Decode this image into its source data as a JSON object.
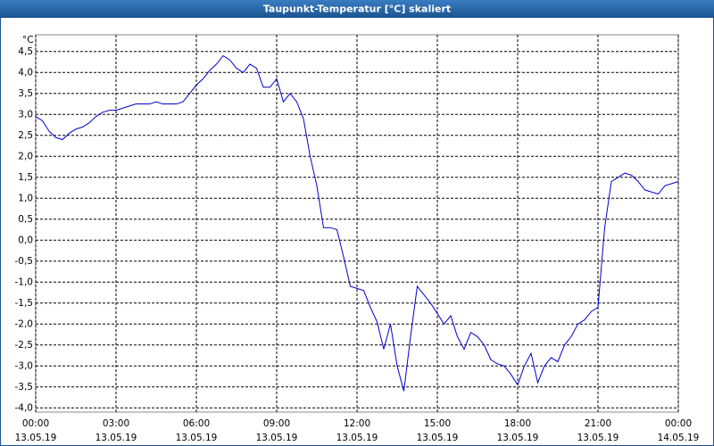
{
  "chart_data": {
    "type": "line",
    "title": "Taupunkt-Temperatur [°C] skaliert",
    "yunit": "°C",
    "x": [
      0,
      0.25,
      0.5,
      0.75,
      1,
      1.25,
      1.5,
      1.75,
      2,
      2.25,
      2.5,
      2.75,
      3,
      3.25,
      3.5,
      3.75,
      4,
      4.25,
      4.5,
      4.75,
      5,
      5.25,
      5.5,
      5.75,
      6,
      6.25,
      6.5,
      6.75,
      7,
      7.25,
      7.5,
      7.75,
      8,
      8.25,
      8.5,
      8.75,
      9,
      9.25,
      9.5,
      9.75,
      10,
      10.25,
      10.5,
      10.75,
      11,
      11.25,
      11.5,
      11.75,
      12,
      12.25,
      12.5,
      12.75,
      13,
      13.25,
      13.5,
      13.75,
      14,
      14.25,
      14.5,
      14.75,
      15,
      15.25,
      15.5,
      15.75,
      16,
      16.25,
      16.5,
      16.75,
      17,
      17.25,
      17.5,
      17.75,
      18,
      18.25,
      18.5,
      18.75,
      19,
      19.25,
      19.5,
      19.75,
      20,
      20.25,
      20.5,
      20.75,
      21,
      21.25,
      21.5,
      21.75,
      22,
      22.25,
      22.5,
      22.75,
      23,
      23.25,
      23.5,
      23.75,
      24
    ],
    "values": [
      2.95,
      2.85,
      2.6,
      2.45,
      2.4,
      2.55,
      2.65,
      2.7,
      2.8,
      2.95,
      3.05,
      3.1,
      3.1,
      3.15,
      3.2,
      3.25,
      3.25,
      3.25,
      3.3,
      3.25,
      3.25,
      3.25,
      3.3,
      3.5,
      3.7,
      3.85,
      4.05,
      4.2,
      4.4,
      4.3,
      4.1,
      4.0,
      4.2,
      4.1,
      3.65,
      3.65,
      3.85,
      3.3,
      3.5,
      3.3,
      2.9,
      2.0,
      1.3,
      0.3,
      0.3,
      0.25,
      -0.4,
      -1.1,
      -1.15,
      -1.2,
      -1.6,
      -1.95,
      -2.6,
      -2.0,
      -3.0,
      -3.6,
      -2.3,
      -1.1,
      -1.3,
      -1.5,
      -1.75,
      -2.0,
      -1.8,
      -2.3,
      -2.6,
      -2.2,
      -2.3,
      -2.5,
      -2.85,
      -2.95,
      -3.0,
      -3.2,
      -3.45,
      -3.0,
      -2.7,
      -3.4,
      -3.0,
      -2.8,
      -2.9,
      -2.5,
      -2.3,
      -2.0,
      -1.9,
      -1.7,
      -1.6,
      0.3,
      1.4,
      1.5,
      1.6,
      1.55,
      1.4,
      1.2,
      1.15,
      1.1,
      1.3,
      1.35,
      1.4
    ],
    "color": "#0000cc",
    "grid": true,
    "xlim": [
      0,
      24
    ],
    "xticks": [
      {
        "value": 0,
        "label": "00:00",
        "date": "13.05.19"
      },
      {
        "value": 3,
        "label": "03:00",
        "date": "13.05.19"
      },
      {
        "value": 6,
        "label": "06:00",
        "date": "13.05.19"
      },
      {
        "value": 9,
        "label": "09:00",
        "date": "13.05.19"
      },
      {
        "value": 12,
        "label": "12:00",
        "date": "13.05.19"
      },
      {
        "value": 15,
        "label": "15:00",
        "date": "13.05.19"
      },
      {
        "value": 18,
        "label": "18:00",
        "date": "13.05.19"
      },
      {
        "value": 21,
        "label": "21:00",
        "date": "13.05.19"
      },
      {
        "value": 24,
        "label": "00:00",
        "date": "14.05.19"
      }
    ],
    "ylim": [
      -4.1,
      4.9
    ],
    "yticks": [
      {
        "value": 4.5,
        "label": "4,5"
      },
      {
        "value": 4,
        "label": "4,0"
      },
      {
        "value": 3.5,
        "label": "3,5"
      },
      {
        "value": 3,
        "label": "3,0"
      },
      {
        "value": 2.5,
        "label": "2,5"
      },
      {
        "value": 2,
        "label": "2,0"
      },
      {
        "value": 1.5,
        "label": "1,5"
      },
      {
        "value": 1,
        "label": "1,0"
      },
      {
        "value": 0.5,
        "label": "0,5"
      },
      {
        "value": 0,
        "label": "0,0"
      },
      {
        "value": -0.5,
        "label": "-0,5"
      },
      {
        "value": -1,
        "label": "-1,0"
      },
      {
        "value": -1.5,
        "label": "-1,5"
      },
      {
        "value": -2,
        "label": "-2,0"
      },
      {
        "value": -2.5,
        "label": "-2,5"
      },
      {
        "value": -3,
        "label": "-3,0"
      },
      {
        "value": -3.5,
        "label": "-3,5"
      },
      {
        "value": -4,
        "label": "-4,0"
      }
    ]
  }
}
